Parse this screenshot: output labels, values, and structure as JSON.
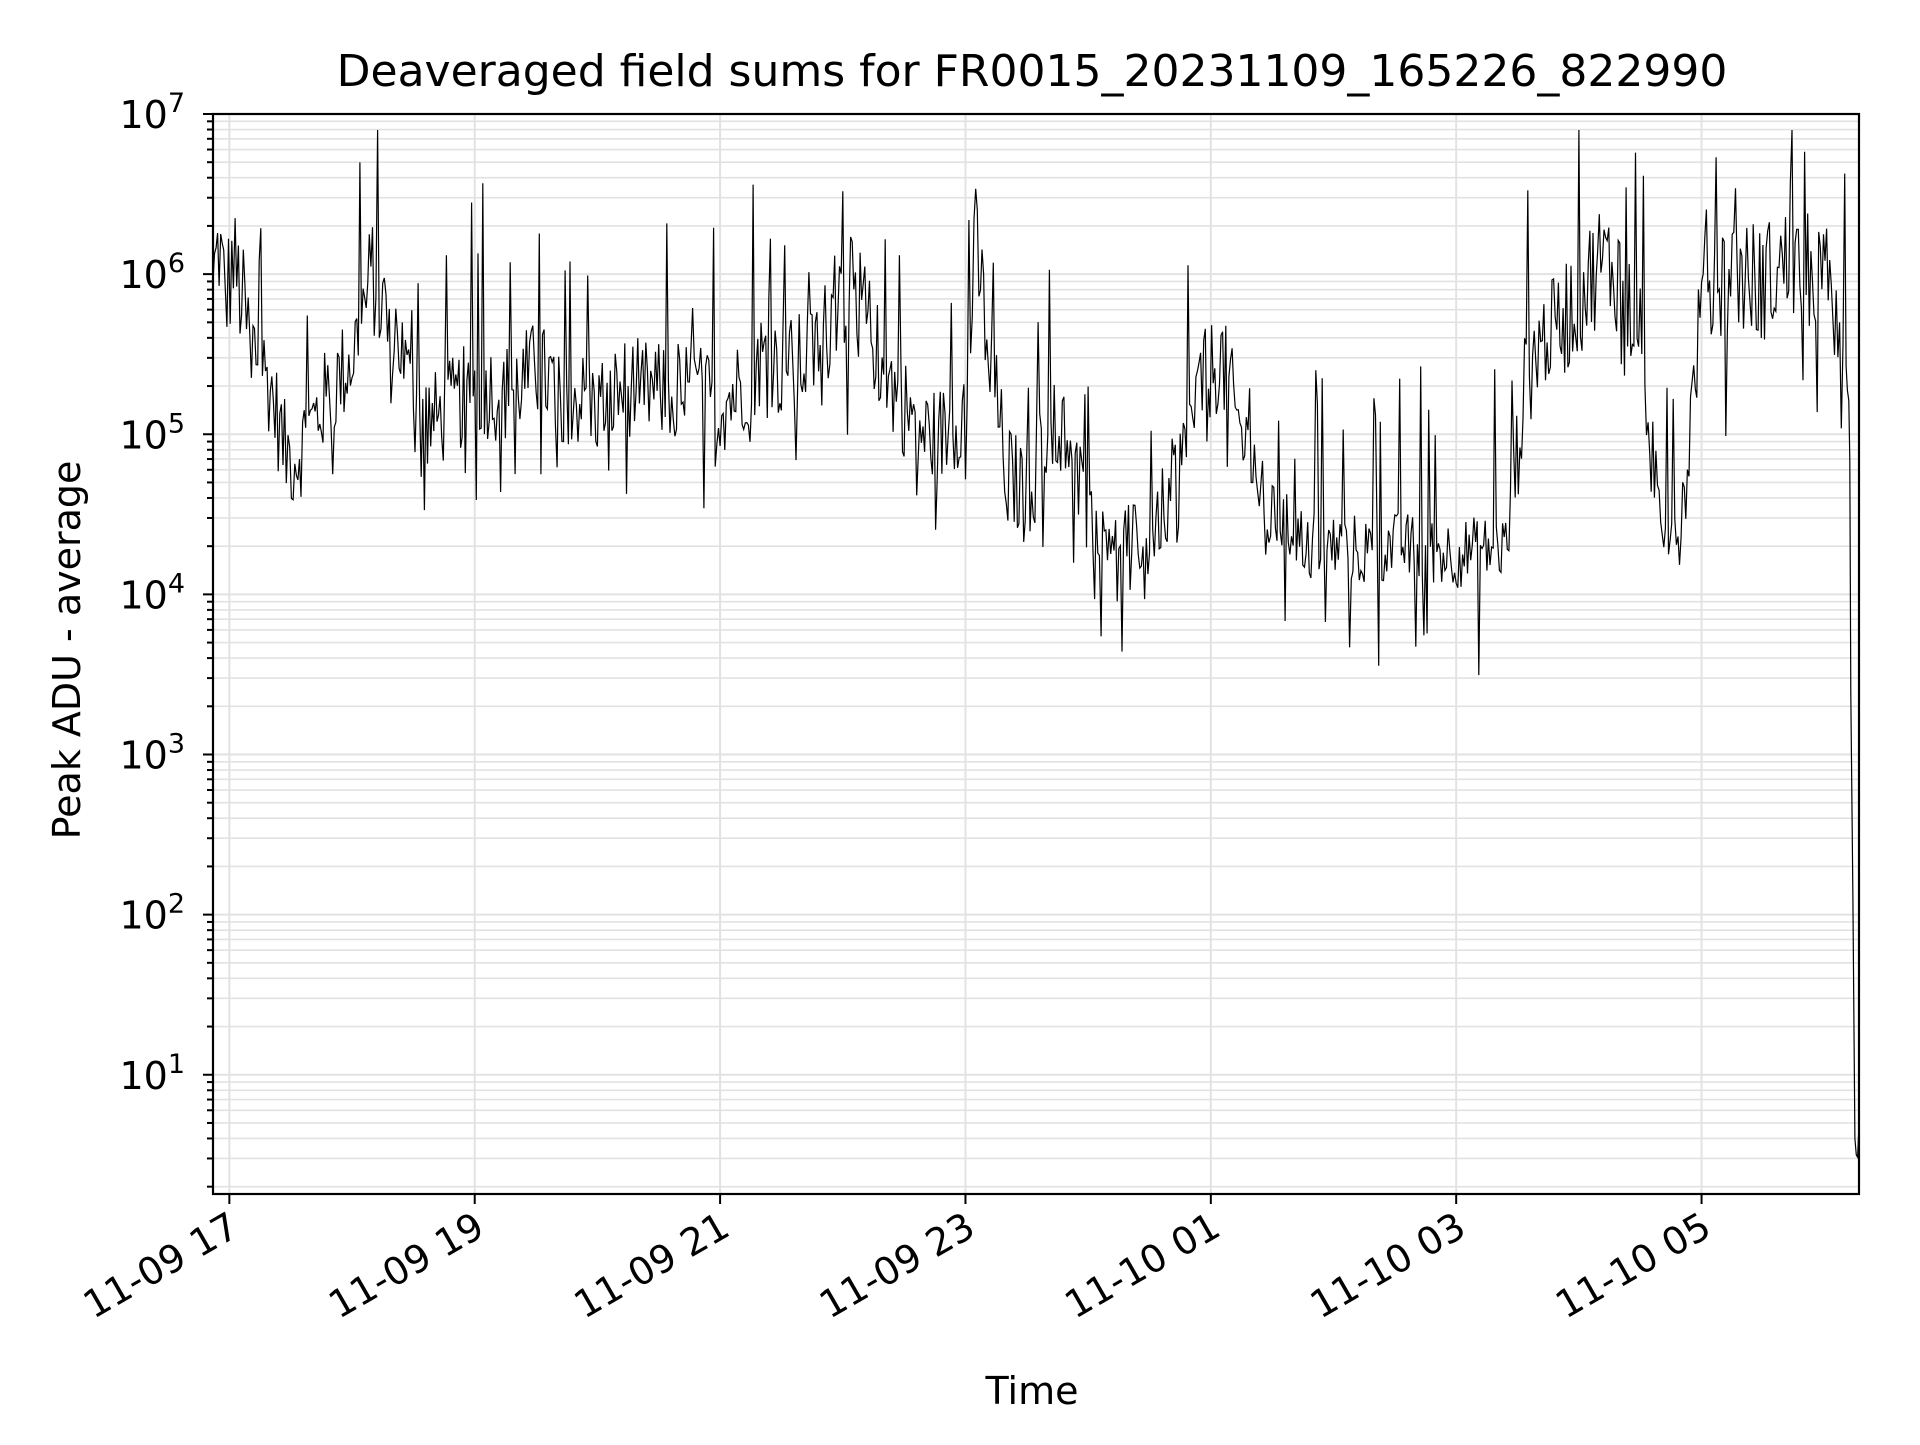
{
  "chart_data": {
    "type": "line",
    "title": "Deaveraged field sums for FR0015_20231109_165226_822990",
    "xlabel": "Time",
    "ylabel": "Peak ADU - average",
    "yscale": "log",
    "ylim": [
      1.8,
      10000000
    ],
    "xlim": [
      "2023-11-09 16:52",
      "2023-11-10 06:17"
    ],
    "grid": true,
    "legend": "none",
    "line_color": "#000000",
    "x_ticks": [
      {
        "value": "2023-11-09 17:00",
        "label": "11-09 17"
      },
      {
        "value": "2023-11-09 19:00",
        "label": "11-09 19"
      },
      {
        "value": "2023-11-09 21:00",
        "label": "11-09 21"
      },
      {
        "value": "2023-11-09 23:00",
        "label": "11-09 23"
      },
      {
        "value": "2023-11-10 01:00",
        "label": "11-10 01"
      },
      {
        "value": "2023-11-10 03:00",
        "label": "11-10 03"
      },
      {
        "value": "2023-11-10 05:00",
        "label": "11-10 05"
      }
    ],
    "y_ticks": [
      {
        "value": 10,
        "base": "10",
        "exp": "1"
      },
      {
        "value": 100,
        "base": "10",
        "exp": "2"
      },
      {
        "value": 1000,
        "base": "10",
        "exp": "3"
      },
      {
        "value": 10000,
        "base": "10",
        "exp": "4"
      },
      {
        "value": 100000,
        "base": "10",
        "exp": "5"
      },
      {
        "value": 1000000,
        "base": "10",
        "exp": "6"
      },
      {
        "value": 10000000,
        "base": "10",
        "exp": "7"
      }
    ],
    "series": [
      {
        "x": [
          "2023-11-09 16:52",
          "2023-11-09 16:55",
          "2023-11-09 16:58",
          "2023-11-09 17:02",
          "2023-11-09 17:10",
          "2023-11-09 17:20",
          "2023-11-09 17:27",
          "2023-11-09 17:32",
          "2023-11-09 17:45",
          "2023-11-09 18:00",
          "2023-11-09 18:10",
          "2023-11-09 18:15",
          "2023-11-09 18:23",
          "2023-11-09 18:30",
          "2023-11-09 18:40",
          "2023-11-09 18:50",
          "2023-11-09 19:00",
          "2023-11-09 19:15",
          "2023-11-09 19:30",
          "2023-11-09 19:45",
          "2023-11-09 20:00",
          "2023-11-09 20:15",
          "2023-11-09 20:30",
          "2023-11-09 20:45",
          "2023-11-09 21:00",
          "2023-11-09 21:10",
          "2023-11-09 21:20",
          "2023-11-09 21:30",
          "2023-11-09 21:45",
          "2023-11-09 22:00",
          "2023-11-09 22:10",
          "2023-11-09 22:20",
          "2023-11-09 22:30",
          "2023-11-09 22:40",
          "2023-11-09 22:50",
          "2023-11-09 23:00",
          "2023-11-09 23:05",
          "2023-11-09 23:12",
          "2023-11-09 23:20",
          "2023-11-09 23:30",
          "2023-11-09 23:45",
          "2023-11-10 00:00",
          "2023-11-10 00:15",
          "2023-11-10 00:30",
          "2023-11-10 00:45",
          "2023-11-10 00:55",
          "2023-11-10 01:05",
          "2023-11-10 01:15",
          "2023-11-10 01:30",
          "2023-11-10 01:45",
          "2023-11-10 02:00",
          "2023-11-10 02:15",
          "2023-11-10 02:30",
          "2023-11-10 02:45",
          "2023-11-10 03:00",
          "2023-11-10 03:15",
          "2023-11-10 03:25",
          "2023-11-10 03:35",
          "2023-11-10 03:50",
          "2023-11-10 04:00",
          "2023-11-10 04:10",
          "2023-11-10 04:20",
          "2023-11-10 04:30",
          "2023-11-10 04:40",
          "2023-11-10 04:50",
          "2023-11-10 05:00",
          "2023-11-10 05:15",
          "2023-11-10 05:30",
          "2023-11-10 05:45",
          "2023-11-10 05:55",
          "2023-11-10 06:05",
          "2023-11-10 06:10",
          "2023-11-10 06:12",
          "2023-11-10 06:13",
          "2023-11-10 06:15",
          "2023-11-10 06:17"
        ],
        "y": [
          900000,
          1500000,
          700000,
          1200000,
          400000,
          200000,
          80000,
          70000,
          150000,
          300000,
          1000000,
          600000,
          400000,
          150000,
          120000,
          150000,
          200000,
          180000,
          250000,
          180000,
          150000,
          200000,
          180000,
          200000,
          150000,
          200000,
          300000,
          250000,
          300000,
          800000,
          600000,
          250000,
          150000,
          100000,
          100000,
          150000,
          1500000,
          300000,
          60000,
          40000,
          150000,
          30000,
          25000,
          20000,
          60000,
          200000,
          300000,
          100000,
          30000,
          22000,
          20000,
          19000,
          20000,
          19000,
          18000,
          19000,
          20000,
          300000,
          500000,
          700000,
          1200000,
          1000000,
          400000,
          30000,
          25000,
          700000,
          1000000,
          900000,
          1200000,
          1000000,
          800000,
          400000,
          300000,
          4000,
          4,
          4
        ]
      }
    ]
  }
}
